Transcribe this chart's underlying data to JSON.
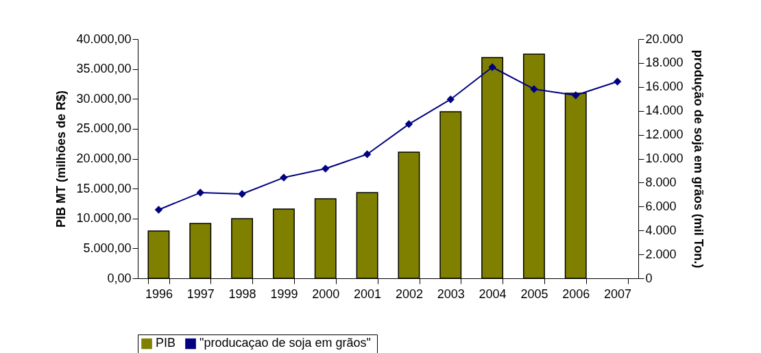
{
  "chart_data": {
    "type": "bar",
    "ylabel": "PIB MT (milhões de R$)",
    "y2label": "produção de soja em grãos (mil Ton.)",
    "categories": [
      "1996",
      "1997",
      "1998",
      "1999",
      "2000",
      "2001",
      "2002",
      "2003",
      "2004",
      "2005",
      "2006",
      "2007"
    ],
    "series": [
      {
        "name": "PIB",
        "color": "#808000",
        "values": [
          7900,
          9170,
          9970,
          11580,
          13300,
          14330,
          21090,
          27850,
          36900,
          37480,
          30950,
          null
        ]
      },
      {
        "name": "\"producaçao de  soja em grãos\"",
        "type": "line",
        "axis": "y2",
        "color": "#000080",
        "marker": "diamond",
        "values": [
          5730,
          7160,
          7050,
          8420,
          9170,
          10370,
          12890,
          14960,
          17650,
          15820,
          15300,
          16450
        ]
      }
    ],
    "ylim": [
      0,
      40000
    ],
    "yticks": [
      {
        "value": 0,
        "label": "0,00"
      },
      {
        "value": 5000,
        "label": "5.000,00"
      },
      {
        "value": 10000,
        "label": "10.000,00"
      },
      {
        "value": 15000,
        "label": "15.000,00"
      },
      {
        "value": 20000,
        "label": "20.000,00"
      },
      {
        "value": 25000,
        "label": "25.000,00"
      },
      {
        "value": 30000,
        "label": "30.000,00"
      },
      {
        "value": 35000,
        "label": "35.000,00"
      },
      {
        "value": 40000,
        "label": "40.000,00"
      }
    ],
    "y2lim": [
      0,
      20000
    ],
    "y2ticks": [
      0,
      {
        "value": 2000,
        "label": "2.000"
      },
      {
        "value": 4000,
        "label": "4.000"
      },
      {
        "value": 6000,
        "label": "6.000"
      },
      {
        "value": 8000,
        "label": "8.000"
      },
      {
        "value": 10000,
        "label": "10.000"
      },
      {
        "value": 12000,
        "label": "12.000"
      },
      {
        "value": 14000,
        "label": "14.000"
      },
      {
        "value": 16000,
        "label": "16.000"
      },
      {
        "value": 18000,
        "label": "18.000"
      },
      {
        "value": 20000,
        "label": "20.000"
      }
    ],
    "legend": "bottom"
  }
}
